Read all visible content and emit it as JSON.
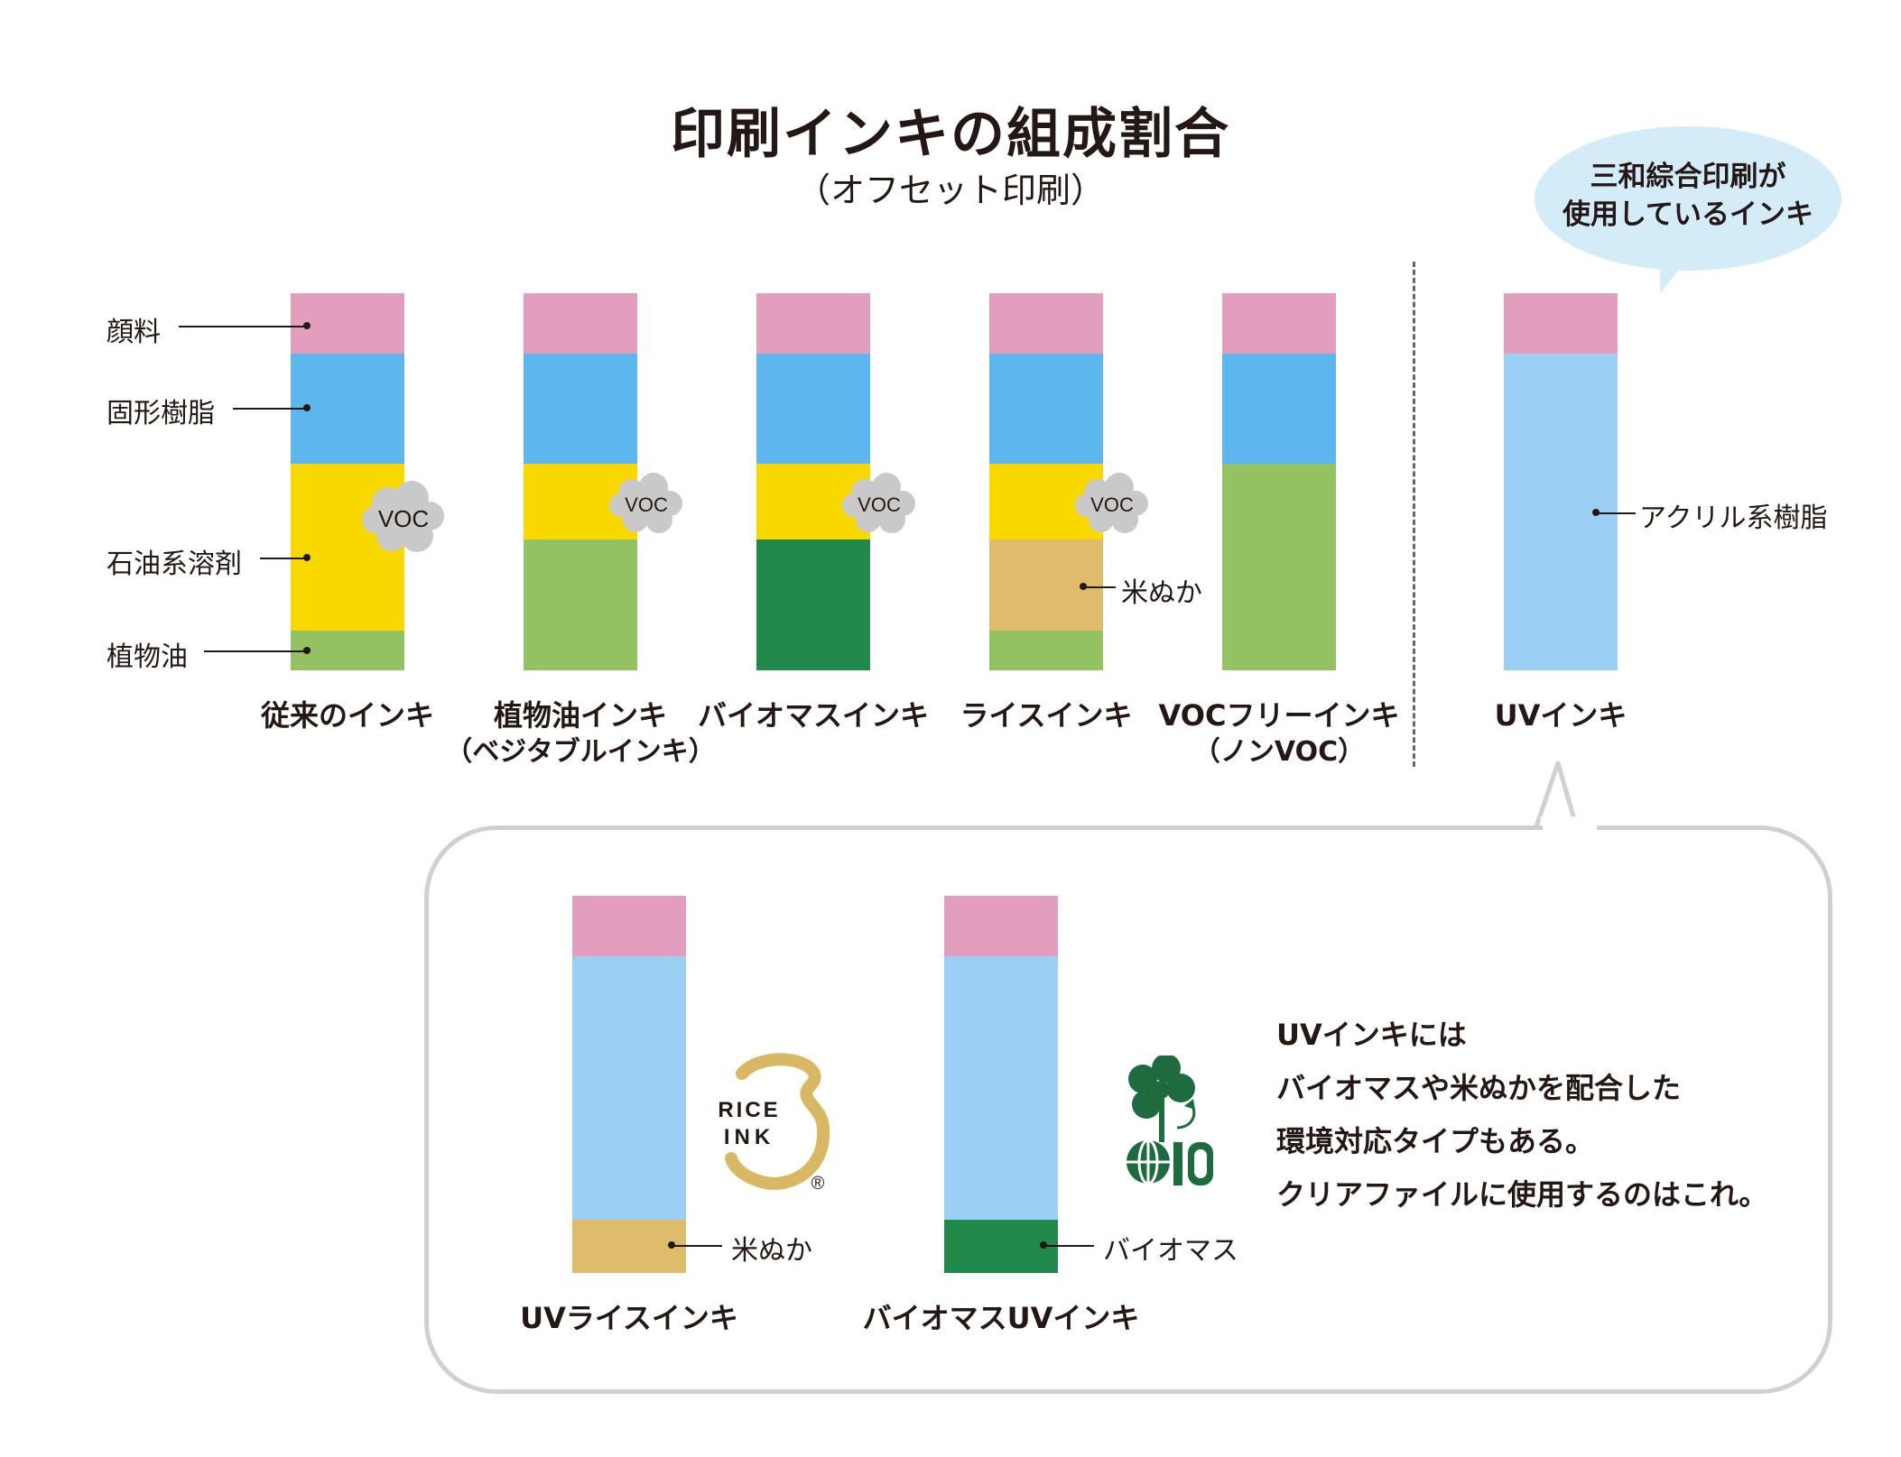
{
  "title": "印刷インキの組成割合",
  "subtitle": "（オフセット印刷）",
  "bubble": {
    "line1": "三和綜合印刷が",
    "line2": "使用しているインキ"
  },
  "legend": {
    "pigment": "顔料",
    "solid_resin": "固形樹脂",
    "petroleum_solvent": "石油系溶剤",
    "vegetable_oil": "植物油",
    "rice_bran": "米ぬか",
    "acrylic_resin": "アクリル系樹脂",
    "biomass": "バイオマス"
  },
  "voc_label": "VOC",
  "colors": {
    "pigment": "#e29ebd",
    "solid_resin": "#5db7ee",
    "petroleum_solvent": "#f9d800",
    "vegetable_oil": "#94c263",
    "biomass": "#218a4a",
    "rice_bran": "#dfbc6b",
    "acrylic_resin": "#9bcff4",
    "voc_cloud": "#c9c9c9",
    "rice_logo": "#d9b863",
    "clover": "#1e6b3e"
  },
  "inks": [
    {
      "label": "従来のインキ",
      "sub": ""
    },
    {
      "label": "植物油インキ",
      "sub": "（ベジタブルインキ）"
    },
    {
      "label": "バイオマスインキ",
      "sub": ""
    },
    {
      "label": "ライスインキ",
      "sub": ""
    },
    {
      "label": "VOCフリーインキ",
      "sub": "（ノンVOC）"
    },
    {
      "label": "UVインキ",
      "sub": ""
    },
    {
      "label": "UVライスインキ",
      "sub": ""
    },
    {
      "label": "バイオマスUVインキ",
      "sub": ""
    }
  ],
  "rice_logo": {
    "line1": "RICE",
    "line2": "INK",
    "mark": "®"
  },
  "clover_logo": {
    "number": "10"
  },
  "note": {
    "line1": "UVインキには",
    "line2": "バイオマスや米ぬかを配合した",
    "line3": "環境対応タイプもある。",
    "line4": "クリアファイルに使用するのはこれ。"
  }
}
